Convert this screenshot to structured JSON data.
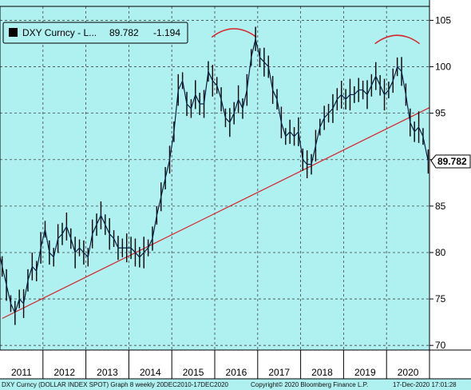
{
  "chart_data": {
    "type": "line",
    "title": "",
    "xlabel": "",
    "ylabel": "",
    "legend": {
      "ticker": "DXY Curncy - L...",
      "last": "89.782",
      "change": "-1.194",
      "placement": "top-left"
    },
    "last_value_label": "89.782",
    "ylim": [
      69.5,
      106.5
    ],
    "xlim": [
      2011.0,
      2021.0
    ],
    "y_ticks": [
      70,
      75,
      80,
      85,
      90,
      95,
      100,
      105
    ],
    "x_ticks": [
      "2011",
      "2012",
      "2013",
      "2014",
      "2015",
      "2016",
      "2017",
      "2018",
      "2019",
      "2020"
    ],
    "grid": true,
    "colors": {
      "background": "#aff0f0",
      "price_line": "#000000",
      "trend_line": "#d9232a",
      "arc": "#d9232a",
      "axis_box": "#ffffff"
    },
    "series": [
      {
        "name": "DXY Curncy",
        "x": [
          2010.96,
          2011.05,
          2011.15,
          2011.25,
          2011.35,
          2011.45,
          2011.55,
          2011.65,
          2011.75,
          2011.85,
          2011.95,
          2012.05,
          2012.15,
          2012.25,
          2012.35,
          2012.45,
          2012.55,
          2012.65,
          2012.75,
          2012.85,
          2012.95,
          2013.05,
          2013.15,
          2013.25,
          2013.35,
          2013.45,
          2013.55,
          2013.65,
          2013.75,
          2013.85,
          2013.95,
          2014.05,
          2014.15,
          2014.25,
          2014.35,
          2014.45,
          2014.55,
          2014.65,
          2014.75,
          2014.85,
          2014.95,
          2015.05,
          2015.15,
          2015.25,
          2015.35,
          2015.45,
          2015.55,
          2015.65,
          2015.75,
          2015.85,
          2015.95,
          2016.05,
          2016.15,
          2016.25,
          2016.35,
          2016.45,
          2016.55,
          2016.65,
          2016.75,
          2016.85,
          2016.95,
          2017.05,
          2017.15,
          2017.25,
          2017.35,
          2017.45,
          2017.55,
          2017.65,
          2017.75,
          2017.85,
          2017.95,
          2018.05,
          2018.15,
          2018.25,
          2018.35,
          2018.45,
          2018.55,
          2018.65,
          2018.75,
          2018.85,
          2018.95,
          2019.05,
          2019.15,
          2019.25,
          2019.35,
          2019.45,
          2019.55,
          2019.65,
          2019.75,
          2019.85,
          2019.95,
          2020.05,
          2020.15,
          2020.25,
          2020.35,
          2020.45,
          2020.55,
          2020.65,
          2020.75,
          2020.85,
          2020.97
        ],
        "values": [
          80.5,
          78.5,
          76.5,
          74.5,
          73.5,
          75.0,
          74.5,
          77.0,
          78.5,
          78.0,
          80.5,
          82.5,
          80.0,
          79.5,
          81.5,
          82.0,
          82.8,
          81.5,
          80.0,
          80.5,
          80.0,
          79.5,
          82.0,
          83.0,
          84.0,
          83.0,
          82.0,
          81.5,
          80.5,
          80.5,
          80.5,
          80.5,
          80.0,
          79.5,
          80.0,
          80.5,
          81.5,
          84.0,
          86.0,
          88.0,
          90.0,
          93.0,
          97.5,
          98.5,
          96.0,
          95.5,
          97.0,
          96.0,
          96.0,
          99.5,
          98.5,
          98.0,
          96.5,
          94.5,
          94.0,
          95.0,
          96.5,
          95.5,
          97.5,
          101.0,
          103.0,
          101.0,
          100.5,
          100.0,
          97.5,
          96.5,
          94.0,
          92.5,
          93.0,
          92.5,
          93.0,
          90.0,
          89.5,
          89.5,
          91.5,
          93.5,
          94.5,
          95.0,
          95.5,
          96.5,
          97.0,
          96.5,
          97.0,
          97.0,
          97.5,
          97.5,
          97.0,
          98.0,
          99.0,
          98.0,
          97.0,
          97.5,
          98.5,
          100.0,
          99.5,
          97.0,
          94.0,
          93.0,
          93.5,
          92.5,
          89.8
        ]
      }
    ],
    "trend_line": {
      "x": [
        2011.05,
        2021.0
      ],
      "values": [
        72.9,
        95.6
      ]
    },
    "annotations": [
      {
        "type": "arc",
        "x_center": 2016.45,
        "peak_value": 103.7
      },
      {
        "type": "arc",
        "x_center": 2020.25,
        "peak_value": 103.0
      }
    ]
  },
  "footer": {
    "left": "DXY Curncy (DOLLAR INDEX SPOT) Graph 8  weekly 20DEC2010-17DEC2020",
    "copyright": "Copyright© 2020 Bloomberg Finance L.P.",
    "timestamp": "17-Dec-2020 17:01:28"
  }
}
